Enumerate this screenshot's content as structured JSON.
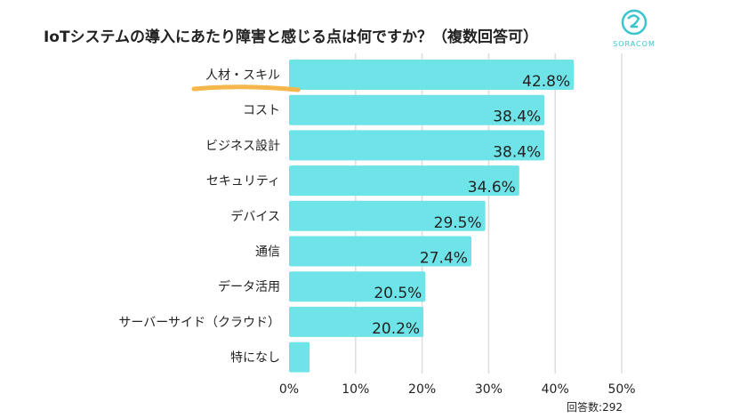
{
  "chart_data": {
    "type": "bar",
    "orientation": "horizontal",
    "title": "IoTシステムの導入にあたり障害と感じる点は何ですか？（複数回答可）",
    "categories": [
      "人材・スキル",
      "コスト",
      "ビジネス設計",
      "セキュリティ",
      "デバイス",
      "通信",
      "データ活用",
      "サーバーサイド（クラウド）",
      "特になし"
    ],
    "values": [
      42.8,
      38.4,
      38.4,
      34.6,
      29.5,
      27.4,
      20.5,
      20.2,
      3.1
    ],
    "value_labels": [
      "42.8%",
      "38.4%",
      "38.4%",
      "34.6%",
      "29.5%",
      "27.4%",
      "20.5%",
      "20.2%",
      ""
    ],
    "xlim": [
      0,
      50
    ],
    "xticks": [
      "0%",
      "10%",
      "20%",
      "30%",
      "40%",
      "50%"
    ],
    "grid": true,
    "highlighted_category": "人材・スキル",
    "note": "回答数:292",
    "bar_color": "#6ee3e8",
    "highlight_color": "#f5b64c"
  },
  "logo": {
    "text": "SORACOM",
    "color": "#3cc4cf"
  }
}
